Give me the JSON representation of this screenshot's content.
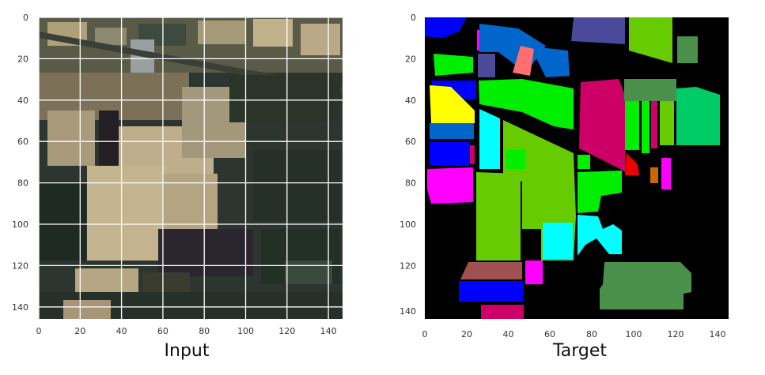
{
  "panels": {
    "input": {
      "caption": "Input",
      "x_ticks": [
        "0",
        "20",
        "40",
        "60",
        "80",
        "100",
        "120",
        "140"
      ],
      "y_ticks": [
        "0",
        "20",
        "40",
        "60",
        "80",
        "100",
        "120",
        "140"
      ]
    },
    "target": {
      "caption": "Target",
      "x_ticks": [
        "0",
        "20",
        "40",
        "60",
        "80",
        "100",
        "120",
        "140"
      ],
      "y_ticks": [
        "0",
        "20",
        "40",
        "60",
        "80",
        "100",
        "120",
        "140"
      ]
    }
  },
  "colors": {
    "background": "#000000",
    "grid": "#ffffff",
    "class_blue": "#0000ff",
    "class_purple": "#4b4a9a",
    "class_lime": "#66cc00",
    "class_green": "#00ee00",
    "class_sage": "#4a8f4a",
    "class_teal_green": "#00cc66",
    "class_crimson": "#cc0066",
    "class_magenta": "#ff00ff",
    "class_cyan": "#00ffff",
    "class_yellow": "#ffff00",
    "class_mauve": "#a05050",
    "class_salmon": "#ff6f6f",
    "class_red": "#ee0000",
    "class_orange": "#cc6600",
    "class_steel_blue": "#0066cc"
  }
}
